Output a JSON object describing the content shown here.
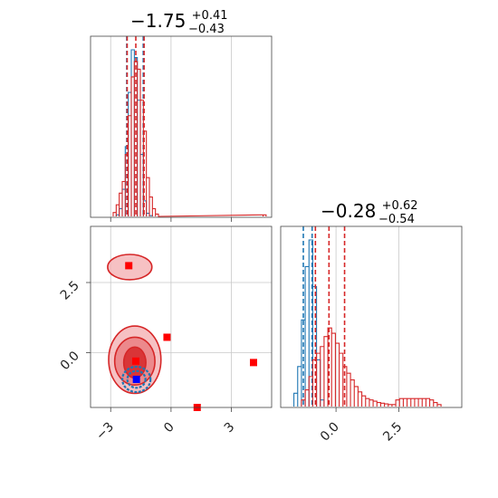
{
  "figure": {
    "type": "corner-plot",
    "colors": {
      "blue": "#1f77b4",
      "red": "#d62728",
      "marker_red": "#ff0000",
      "marker_blue": "#0000ff",
      "grid": "#c8c8c8"
    }
  },
  "chart_data": [
    {
      "type": "histogram",
      "panel": "top-left",
      "title": {
        "value": "−1.75",
        "upper": "+0.41",
        "lower": "−0.43"
      },
      "xlim": [
        -4.0,
        5.0
      ],
      "bin_width": 0.15,
      "series": [
        {
          "name": "",
          "color": "#1f77b4",
          "bins_x": [
            -2.65,
            -2.5,
            -2.35,
            -2.2,
            -2.05,
            -1.9,
            -1.75,
            -1.6,
            -1.45,
            -1.3,
            -1.15,
            -1.0
          ],
          "counts": [
            2,
            10,
            35,
            90,
            160,
            215,
            205,
            150,
            80,
            20,
            4,
            1
          ],
          "quantiles": [
            -2.2,
            -1.38
          ]
        },
        {
          "name": "",
          "color": "#d62728",
          "bins_x": [
            -2.8,
            -2.65,
            -2.5,
            -2.35,
            -2.2,
            -2.05,
            -1.9,
            -1.75,
            -1.6,
            -1.45,
            -1.3,
            -1.15,
            -1.0,
            -0.85,
            -0.7,
            4.5,
            4.65
          ],
          "counts": [
            5,
            15,
            30,
            45,
            80,
            130,
            180,
            200,
            190,
            150,
            110,
            50,
            25,
            10,
            3,
            2,
            2
          ],
          "quantiles": [
            -2.18,
            -1.75,
            -1.34
          ]
        }
      ]
    },
    {
      "type": "scatter",
      "panel": "bottom-left",
      "xlim": [
        -4.0,
        5.0
      ],
      "ylim": [
        -1.95,
        4.5
      ],
      "x_ticks": [
        -3,
        0,
        3
      ],
      "x_tick_labels": [
        "−3",
        "0",
        "3"
      ],
      "y_ticks": [
        0.0,
        2.5
      ],
      "y_tick_labels": [
        "0.0",
        "2.5"
      ],
      "red_markers": [
        {
          "x": -2.1,
          "y": 3.1
        },
        {
          "x": -0.2,
          "y": 0.55
        },
        {
          "x": -1.75,
          "y": -0.3
        },
        {
          "x": 4.1,
          "y": -0.35
        },
        {
          "x": 1.3,
          "y": -1.95
        }
      ],
      "blue_markers": [
        {
          "x": -1.72,
          "y": -0.95
        }
      ],
      "red_contours": [
        {
          "cx": -2.05,
          "cy": 3.05,
          "rx": 1.1,
          "ry": 0.45,
          "level": 1
        },
        {
          "cx": -1.8,
          "cy": -0.25,
          "rx": 1.3,
          "ry": 1.2,
          "level": 1
        },
        {
          "cx": -1.8,
          "cy": -0.3,
          "rx": 1.0,
          "ry": 0.85,
          "level": 2
        },
        {
          "cx": -1.8,
          "cy": -0.35,
          "rx": 0.55,
          "ry": 0.55,
          "level": 3
        }
      ],
      "blue_contours": [
        {
          "cx": -1.72,
          "cy": -0.95,
          "rx": 0.7,
          "ry": 0.45
        },
        {
          "cx": -1.72,
          "cy": -0.95,
          "rx": 0.45,
          "ry": 0.3
        }
      ]
    },
    {
      "type": "histogram",
      "panel": "bottom-right",
      "title": {
        "value": "−0.28",
        "upper": "+0.62",
        "lower": "−0.54"
      },
      "xlim": [
        -2.2,
        5.0
      ],
      "x_ticks": [
        0.0,
        2.5
      ],
      "x_tick_labels": [
        "0.0",
        "2.5"
      ],
      "bin_width": 0.15,
      "series": [
        {
          "name": "",
          "color": "#1f77b4",
          "bins_x": [
            -1.6,
            -1.45,
            -1.3,
            -1.15,
            -1.0,
            -0.85,
            -0.7,
            -0.55
          ],
          "counts": [
            20,
            60,
            130,
            210,
            250,
            180,
            70,
            10
          ],
          "quantiles": [
            -1.3,
            -0.95
          ]
        },
        {
          "name": "",
          "color": "#d62728",
          "bins_x": [
            -1.3,
            -1.15,
            -1.0,
            -0.85,
            -0.7,
            -0.55,
            -0.4,
            -0.25,
            -0.1,
            0.05,
            0.2,
            0.35,
            0.5,
            0.65,
            0.8,
            0.95,
            1.1,
            1.25,
            1.4,
            1.55,
            1.7,
            1.85,
            2.0,
            2.15,
            2.3,
            2.45,
            2.6,
            2.75,
            2.9,
            3.05,
            3.2,
            3.35,
            3.5,
            3.65,
            3.8,
            3.95,
            4.1
          ],
          "counts": [
            10,
            25,
            45,
            70,
            80,
            90,
            105,
            118,
            110,
            95,
            80,
            60,
            50,
            40,
            30,
            22,
            16,
            12,
            10,
            8,
            6,
            5,
            4,
            3,
            3,
            10,
            12,
            12,
            12,
            12,
            12,
            12,
            12,
            12,
            10,
            6,
            3
          ],
          "quantiles": [
            -0.82,
            -0.28,
            0.34
          ]
        }
      ]
    }
  ]
}
